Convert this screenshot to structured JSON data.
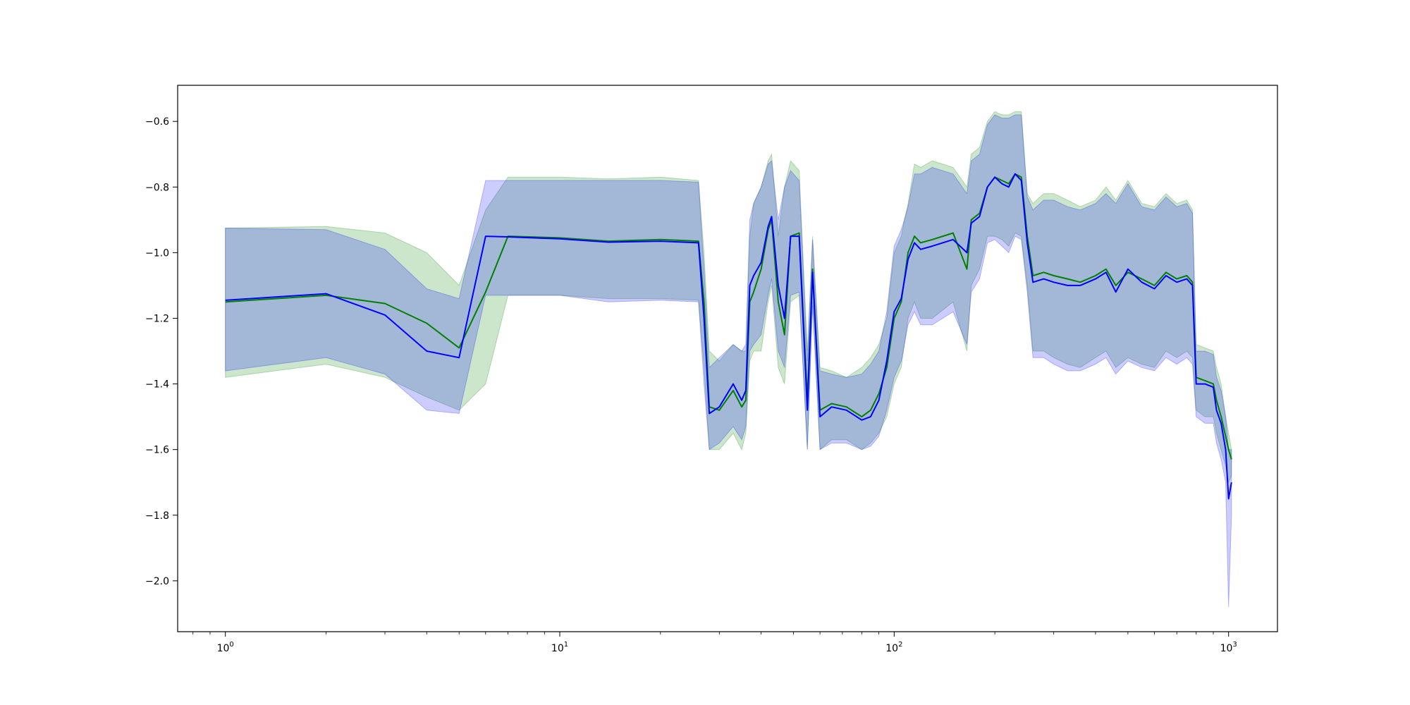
{
  "chart_data": {
    "type": "line",
    "title": "",
    "xlabel": "",
    "ylabel": "",
    "xscale": "log",
    "xlim": [
      0.72,
      1400
    ],
    "ylim": [
      -2.155,
      -0.49
    ],
    "grid": false,
    "legend": "none",
    "x_ticks": [
      {
        "value": 1,
        "base": "10",
        "exp": "0"
      },
      {
        "value": 10,
        "base": "10",
        "exp": "1"
      },
      {
        "value": 100,
        "base": "10",
        "exp": "2"
      },
      {
        "value": 1000,
        "base": "10",
        "exp": "3"
      }
    ],
    "y_ticks": [
      {
        "value": -0.6,
        "label": "−0.6"
      },
      {
        "value": -0.8,
        "label": "−0.8"
      },
      {
        "value": -1.0,
        "label": "−1.0"
      },
      {
        "value": -1.2,
        "label": "−1.2"
      },
      {
        "value": -1.4,
        "label": "−1.4"
      },
      {
        "value": -1.6,
        "label": "−1.6"
      },
      {
        "value": -1.8,
        "label": "−1.8"
      },
      {
        "value": -2.0,
        "label": "−2.0"
      }
    ],
    "series": [
      {
        "color": "#008000",
        "band_color": "#008000",
        "x": [
          1,
          2,
          3,
          4,
          5,
          6,
          7,
          10,
          14,
          20,
          26,
          27,
          28,
          30,
          33,
          35,
          36,
          37,
          38,
          40,
          42,
          43,
          45,
          47,
          49,
          52,
          55,
          57,
          60,
          65,
          72,
          80,
          85,
          90,
          95,
          100,
          105,
          110,
          115,
          120,
          130,
          150,
          165,
          170,
          180,
          190,
          200,
          210,
          220,
          230,
          240,
          250,
          260,
          280,
          300,
          330,
          360,
          400,
          430,
          460,
          500,
          550,
          600,
          650,
          700,
          750,
          780,
          800,
          850,
          900,
          920,
          950,
          980,
          1000,
          1020
        ],
        "mean": [
          -1.15,
          -1.13,
          -1.155,
          -1.215,
          -1.29,
          -1.12,
          -0.95,
          -0.955,
          -0.965,
          -0.96,
          -0.965,
          -1.15,
          -1.47,
          -1.48,
          -1.42,
          -1.47,
          -1.45,
          -1.15,
          -1.12,
          -1.05,
          -0.93,
          -0.9,
          -1.15,
          -1.25,
          -0.95,
          -0.94,
          -1.45,
          -1.05,
          -1.48,
          -1.46,
          -1.47,
          -1.5,
          -1.48,
          -1.43,
          -1.35,
          -1.2,
          -1.15,
          -1.0,
          -0.95,
          -0.97,
          -0.96,
          -0.94,
          -1.05,
          -0.9,
          -0.88,
          -0.8,
          -0.77,
          -0.78,
          -0.79,
          -0.76,
          -0.77,
          -0.95,
          -1.07,
          -1.06,
          -1.07,
          -1.08,
          -1.09,
          -1.07,
          -1.05,
          -1.1,
          -1.06,
          -1.08,
          -1.1,
          -1.06,
          -1.08,
          -1.07,
          -1.09,
          -1.38,
          -1.39,
          -1.4,
          -1.45,
          -1.5,
          -1.56,
          -1.6,
          -1.63
        ],
        "upper": [
          -0.925,
          -0.92,
          -0.94,
          -1.0,
          -1.1,
          -0.87,
          -0.77,
          -0.77,
          -0.775,
          -0.77,
          -0.78,
          -1.0,
          -1.3,
          -1.33,
          -1.28,
          -1.3,
          -1.3,
          -0.95,
          -0.85,
          -0.8,
          -0.72,
          -0.7,
          -0.95,
          -0.8,
          -0.72,
          -0.75,
          -1.3,
          -0.95,
          -1.35,
          -1.36,
          -1.38,
          -1.35,
          -1.32,
          -1.28,
          -1.2,
          -1.0,
          -0.95,
          -0.85,
          -0.73,
          -0.74,
          -0.72,
          -0.74,
          -0.8,
          -0.7,
          -0.68,
          -0.6,
          -0.57,
          -0.58,
          -0.58,
          -0.57,
          -0.57,
          -0.82,
          -0.85,
          -0.82,
          -0.82,
          -0.84,
          -0.86,
          -0.84,
          -0.8,
          -0.84,
          -0.78,
          -0.85,
          -0.86,
          -0.82,
          -0.85,
          -0.84,
          -0.87,
          -1.28,
          -1.29,
          -1.3,
          -1.35,
          -1.4,
          -1.5,
          -1.55,
          -1.6
        ],
        "lower": [
          -1.38,
          -1.34,
          -1.38,
          -1.44,
          -1.48,
          -1.4,
          -1.13,
          -1.13,
          -1.14,
          -1.14,
          -1.145,
          -1.35,
          -1.6,
          -1.6,
          -1.55,
          -1.6,
          -1.55,
          -1.33,
          -1.3,
          -1.3,
          -1.15,
          -1.1,
          -1.35,
          -1.4,
          -1.15,
          -1.13,
          -1.6,
          -1.15,
          -1.6,
          -1.57,
          -1.57,
          -1.6,
          -1.58,
          -1.55,
          -1.5,
          -1.4,
          -1.35,
          -1.2,
          -1.15,
          -1.2,
          -1.2,
          -1.15,
          -1.3,
          -1.1,
          -1.05,
          -0.95,
          -0.95,
          -0.96,
          -0.98,
          -0.94,
          -0.95,
          -1.1,
          -1.3,
          -1.3,
          -1.32,
          -1.34,
          -1.35,
          -1.32,
          -1.3,
          -1.35,
          -1.32,
          -1.34,
          -1.35,
          -1.3,
          -1.32,
          -1.3,
          -1.32,
          -1.48,
          -1.5,
          -1.5,
          -1.55,
          -1.6,
          -1.65,
          -1.7,
          -1.68
        ]
      },
      {
        "color": "#0000ff",
        "band_color": "#0000ff",
        "x": [
          1,
          2,
          3,
          4,
          5,
          6,
          7,
          10,
          14,
          20,
          26,
          27,
          28,
          30,
          33,
          35,
          36,
          37,
          38,
          40,
          42,
          43,
          45,
          47,
          49,
          52,
          55,
          57,
          60,
          65,
          72,
          80,
          85,
          90,
          95,
          100,
          105,
          110,
          115,
          120,
          130,
          150,
          165,
          170,
          180,
          190,
          200,
          210,
          220,
          230,
          240,
          250,
          260,
          280,
          300,
          330,
          360,
          400,
          430,
          460,
          500,
          550,
          600,
          650,
          700,
          750,
          780,
          800,
          850,
          900,
          920,
          950,
          980,
          1000,
          1020
        ],
        "mean": [
          -1.145,
          -1.125,
          -1.19,
          -1.3,
          -1.32,
          -0.95,
          -0.952,
          -0.958,
          -0.968,
          -0.965,
          -0.97,
          -1.2,
          -1.49,
          -1.47,
          -1.4,
          -1.45,
          -1.42,
          -1.1,
          -1.07,
          -1.03,
          -0.92,
          -0.89,
          -1.1,
          -1.2,
          -0.95,
          -0.95,
          -1.48,
          -1.06,
          -1.5,
          -1.47,
          -1.48,
          -1.51,
          -1.5,
          -1.45,
          -1.33,
          -1.18,
          -1.14,
          -1.02,
          -0.97,
          -0.99,
          -0.98,
          -0.96,
          -1.0,
          -0.91,
          -0.89,
          -0.8,
          -0.77,
          -0.79,
          -0.8,
          -0.76,
          -0.78,
          -0.97,
          -1.09,
          -1.08,
          -1.09,
          -1.1,
          -1.1,
          -1.08,
          -1.06,
          -1.12,
          -1.05,
          -1.09,
          -1.11,
          -1.07,
          -1.09,
          -1.08,
          -1.1,
          -1.4,
          -1.4,
          -1.41,
          -1.48,
          -1.52,
          -1.6,
          -1.75,
          -1.7
        ],
        "upper": [
          -0.925,
          -0.93,
          -0.99,
          -1.11,
          -1.14,
          -0.78,
          -0.78,
          -0.78,
          -0.78,
          -0.78,
          -0.785,
          -1.05,
          -1.35,
          -1.32,
          -1.28,
          -1.3,
          -1.28,
          -0.9,
          -0.85,
          -0.8,
          -0.73,
          -0.72,
          -0.9,
          -0.8,
          -0.75,
          -0.78,
          -1.33,
          -0.96,
          -1.36,
          -1.37,
          -1.38,
          -1.37,
          -1.34,
          -1.3,
          -1.18,
          -0.98,
          -0.93,
          -0.86,
          -0.76,
          -0.76,
          -0.74,
          -0.76,
          -0.82,
          -0.72,
          -0.7,
          -0.61,
          -0.58,
          -0.59,
          -0.59,
          -0.58,
          -0.58,
          -0.83,
          -0.87,
          -0.84,
          -0.84,
          -0.86,
          -0.87,
          -0.85,
          -0.82,
          -0.85,
          -0.79,
          -0.86,
          -0.87,
          -0.83,
          -0.86,
          -0.85,
          -0.88,
          -1.3,
          -1.3,
          -1.31,
          -1.38,
          -1.42,
          -1.5,
          -1.6,
          -1.6
        ],
        "lower": [
          -1.36,
          -1.32,
          -1.37,
          -1.48,
          -1.49,
          -1.13,
          -1.13,
          -1.13,
          -1.15,
          -1.145,
          -1.15,
          -1.4,
          -1.6,
          -1.58,
          -1.53,
          -1.57,
          -1.53,
          -1.3,
          -1.28,
          -1.25,
          -1.13,
          -1.08,
          -1.3,
          -1.35,
          -1.13,
          -1.12,
          -1.6,
          -1.16,
          -1.6,
          -1.58,
          -1.58,
          -1.6,
          -1.59,
          -1.56,
          -1.48,
          -1.38,
          -1.33,
          -1.22,
          -1.18,
          -1.22,
          -1.22,
          -1.18,
          -1.28,
          -1.12,
          -1.08,
          -0.97,
          -0.96,
          -0.98,
          -1.0,
          -0.95,
          -0.96,
          -1.12,
          -1.32,
          -1.32,
          -1.34,
          -1.36,
          -1.36,
          -1.34,
          -1.32,
          -1.37,
          -1.33,
          -1.35,
          -1.36,
          -1.32,
          -1.34,
          -1.32,
          -1.34,
          -1.5,
          -1.52,
          -1.52,
          -1.58,
          -1.63,
          -1.7,
          -2.08,
          -1.8
        ]
      }
    ]
  }
}
